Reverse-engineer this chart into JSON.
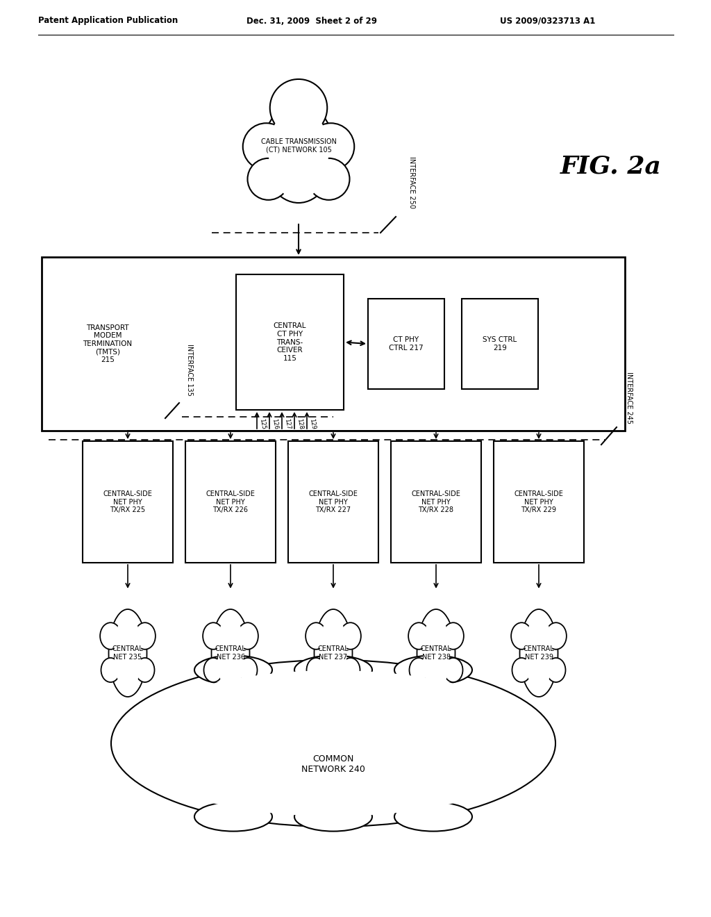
{
  "bg_color": "#ffffff",
  "header_left": "Patent Application Publication",
  "header_mid": "Dec. 31, 2009  Sheet 2 of 29",
  "header_right": "US 2009/0323713 A1",
  "fig_label": "FIG. 2a",
  "cloud_ct_label": "CABLE TRANSMISSION\n(CT) NETWORK 105",
  "interface_250": "INTERFACE 250",
  "interface_135": "INTERFACE 135",
  "interface_245": "INTERFACE 245",
  "tmts_label": "TRANSPORT\nMODEM\nTERMINATION\n(TMTS)\n215",
  "central_ct_label": "CENTRAL\nCT PHY\nTRANS-\nCEIVER\n115",
  "ct_phy_ctrl_label": "CT PHY\nCTRL 217",
  "sys_ctrl_label": "SYS CTRL\n219",
  "net_phy_boxes": [
    {
      "label": "CENTRAL-SIDE\nNET PHY\nTX/RX 225"
    },
    {
      "label": "CENTRAL-SIDE\nNET PHY\nTX/RX 226"
    },
    {
      "label": "CENTRAL-SIDE\nNET PHY\nTX/RX 227"
    },
    {
      "label": "CENTRAL-SIDE\nNET PHY\nTX/RX 228"
    },
    {
      "label": "CENTRAL-SIDE\nNET PHY\nTX/RX 229"
    }
  ],
  "central_nets": [
    "CENTRAL\nNET 235",
    "CENTRAL\nNET 236",
    "CENTRAL\nNET 237",
    "CENTRAL\nNET 238",
    "CENTRAL\nNET 239"
  ],
  "common_network": "COMMON\nNETWORK 240",
  "bus_labels": [
    "125",
    "126",
    "127",
    "128",
    "129"
  ]
}
